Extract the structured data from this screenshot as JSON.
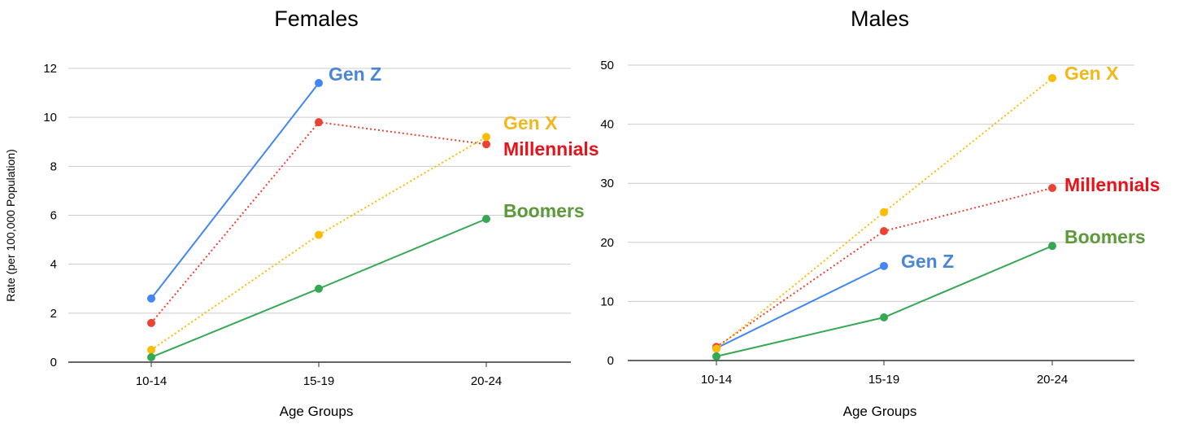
{
  "chart_data": [
    {
      "type": "line",
      "title": "Females",
      "xlabel": "Age Groups",
      "ylabel": "Rate (per 100,000 Population)",
      "categories": [
        "10-14",
        "15-19",
        "20-24"
      ],
      "ylim": [
        0,
        12
      ],
      "yticks": [
        "0",
        "2",
        "4",
        "6",
        "8",
        "10",
        "12"
      ],
      "grid": true,
      "series": [
        {
          "name": "Gen Z",
          "color": "#4285F4",
          "style": "solid",
          "values": [
            2.6,
            11.4,
            null
          ]
        },
        {
          "name": "Millennials",
          "color": "#EA4335",
          "style": "dotted",
          "values": [
            1.6,
            9.8,
            8.9
          ]
        },
        {
          "name": "Gen X",
          "color": "#FBBC04",
          "style": "dotted",
          "values": [
            0.5,
            5.2,
            9.2
          ]
        },
        {
          "name": "Boomers",
          "color": "#34A853",
          "style": "solid",
          "values": [
            0.2,
            3.0,
            5.85
          ]
        }
      ]
    },
    {
      "type": "line",
      "title": "Males",
      "xlabel": "Age Groups",
      "ylabel": "",
      "categories": [
        "10-14",
        "15-19",
        "20-24"
      ],
      "ylim": [
        0,
        50
      ],
      "yticks": [
        "0",
        "10",
        "20",
        "30",
        "40",
        "50"
      ],
      "grid": true,
      "series": [
        {
          "name": "Gen Z",
          "color": "#4285F4",
          "style": "solid",
          "values": [
            2.1,
            16.0,
            null
          ]
        },
        {
          "name": "Millennials",
          "color": "#EA4335",
          "style": "dotted",
          "values": [
            2.3,
            21.9,
            29.2
          ]
        },
        {
          "name": "Gen X",
          "color": "#FBBC04",
          "style": "dotted",
          "values": [
            2.0,
            25.1,
            47.8
          ]
        },
        {
          "name": "Boomers",
          "color": "#34A853",
          "style": "solid",
          "values": [
            0.7,
            7.3,
            19.4
          ]
        }
      ]
    }
  ],
  "series_label_colors": {
    "Gen Z": "#4a86d8",
    "Millennials": "#e8131a",
    "Gen X": "#f0b81d",
    "Boomers": "#5c9a3a"
  }
}
